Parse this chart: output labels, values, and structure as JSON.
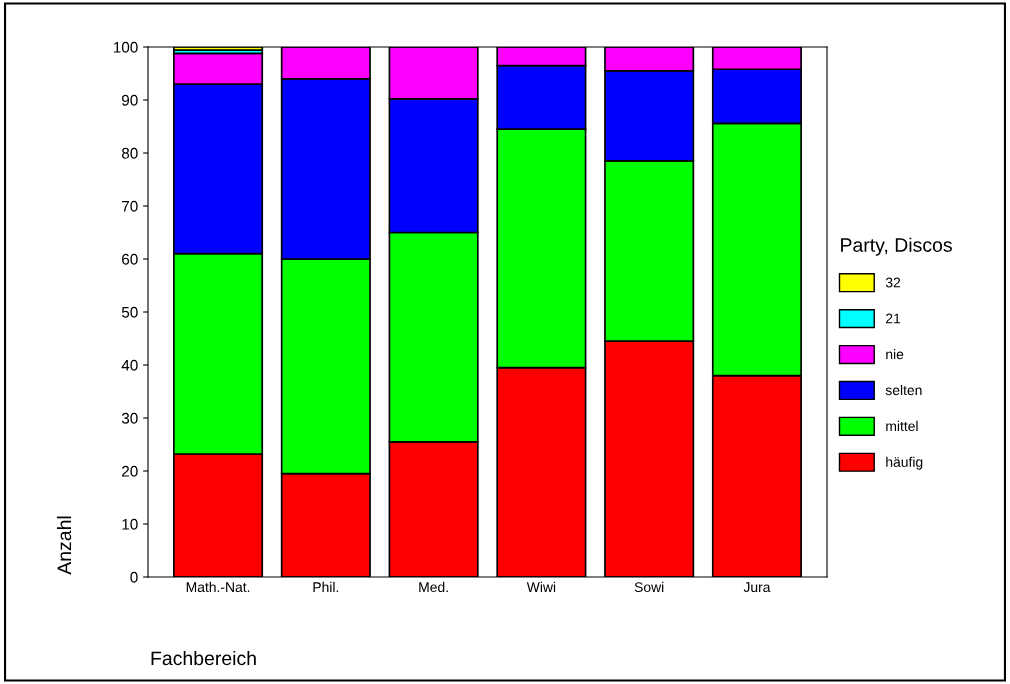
{
  "chart_data": {
    "type": "bar",
    "stacked": true,
    "xlabel": "Fachbereich",
    "ylabel": "Anzahl",
    "legend_title": "Party, Discos",
    "legend": "right",
    "categories": [
      "Math.-Nat.",
      "Phil.",
      "Med.",
      "Wiwi",
      "Sowi",
      "Jura"
    ],
    "ylim": [
      0,
      100
    ],
    "yticks": [
      0,
      10,
      20,
      30,
      40,
      50,
      60,
      70,
      80,
      90,
      100
    ],
    "grid": false,
    "series": [
      {
        "name": "häufig",
        "color": "#ff0000",
        "values": [
          23.2,
          19.5,
          25.5,
          39.5,
          44.5,
          38
        ]
      },
      {
        "name": "mittel",
        "color": "#00ff00",
        "values": [
          37.8,
          40.5,
          39.5,
          45,
          34,
          47.6
        ]
      },
      {
        "name": "selten",
        "color": "#0000ff",
        "values": [
          32,
          34,
          25.2,
          12,
          17,
          10.2
        ]
      },
      {
        "name": "nie",
        "color": "#ff00ff",
        "values": [
          5.8,
          6,
          9.8,
          3.5,
          4.5,
          4.2
        ]
      },
      {
        "name": "21",
        "color": "#00ffff",
        "values": [
          0.6,
          null,
          null,
          null,
          null,
          null
        ]
      },
      {
        "name": "32",
        "color": "#ffff00",
        "values": [
          0.6,
          null,
          null,
          null,
          null,
          null
        ]
      }
    ]
  }
}
